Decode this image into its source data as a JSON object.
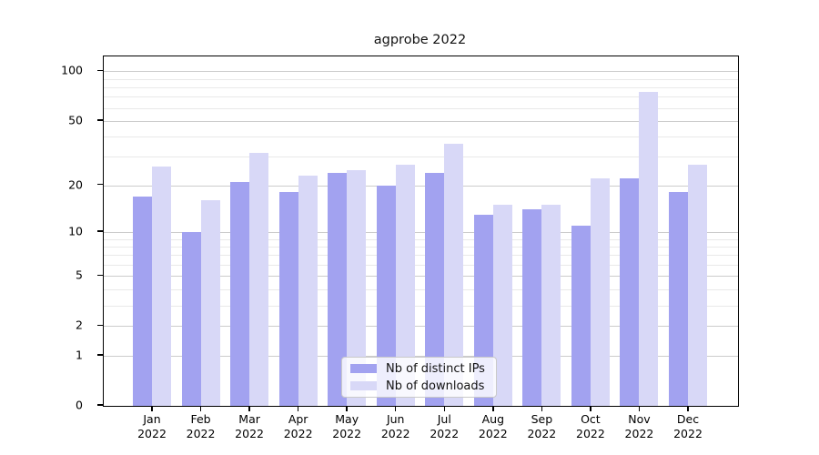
{
  "chart_data": {
    "type": "bar",
    "title": "agprobe 2022",
    "categories": [
      "Jan",
      "Feb",
      "Mar",
      "Apr",
      "May",
      "Jun",
      "Jul",
      "Aug",
      "Sep",
      "Oct",
      "Nov",
      "Dec"
    ],
    "category_year": "2022",
    "series": [
      {
        "name": "Nb of distinct IPs",
        "color": "#a2a2f0",
        "values": [
          17,
          10,
          21,
          18,
          24,
          20,
          24,
          13,
          14,
          11,
          22,
          18
        ]
      },
      {
        "name": "Nb of downloads",
        "color": "#d8d8f7",
        "values": [
          26,
          16,
          32,
          23,
          25,
          27,
          36,
          15,
          15,
          22,
          75,
          27
        ]
      }
    ],
    "y_axis": {
      "scale": "log1p",
      "major_ticks": [
        0,
        1,
        2,
        5,
        10,
        20,
        50,
        100
      ],
      "minor_gridlines": [
        3,
        4,
        6,
        7,
        8,
        9,
        30,
        40,
        60,
        70,
        80,
        90
      ],
      "range": [
        0,
        123
      ]
    },
    "x_axis": {
      "tick_label_lines": 2
    },
    "legend": {
      "position": "lower center",
      "entries": [
        "Nb of distinct IPs",
        "Nb of downloads"
      ]
    },
    "grid": "horizontal only",
    "colors": {
      "major_grid": "#cccccc",
      "minor_grid": "#e9e9e9",
      "spine": "#000000",
      "background": "#ffffff",
      "legend_border": "#c9c9c9"
    }
  }
}
